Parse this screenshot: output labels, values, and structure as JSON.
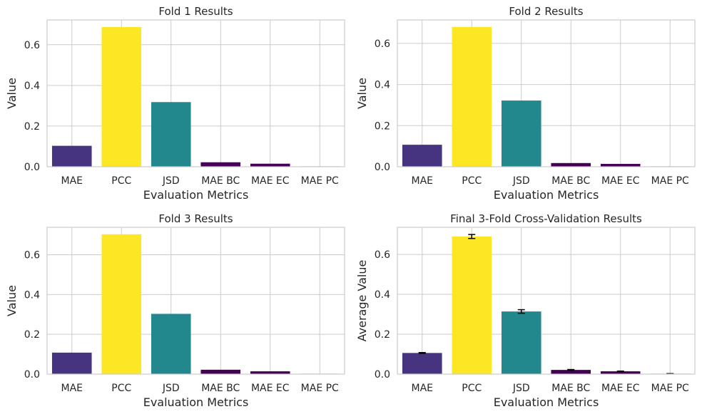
{
  "colors": {
    "MAE": "#463480",
    "PCC": "#fde724",
    "JSD": "#23888e",
    "MAE BC": "#440154",
    "MAE EC": "#440154",
    "MAE PC": "#440154",
    "grid": "#cccccc",
    "frame": "#cccccc"
  },
  "chart_data": [
    {
      "type": "bar",
      "title": "Fold 1 Results",
      "xlabel": "Evaluation Metrics",
      "ylabel": "Value",
      "categories": [
        "MAE",
        "PCC",
        "JSD",
        "MAE BC",
        "MAE EC",
        "MAE PC"
      ],
      "values": [
        0.103,
        0.687,
        0.318,
        0.022,
        0.015,
        0.002
      ],
      "ylim": [
        0,
        0.722
      ],
      "yticks": [
        "0.0",
        "0.2",
        "0.4",
        "0.6"
      ],
      "grid": true
    },
    {
      "type": "bar",
      "title": "Fold 2 Results",
      "xlabel": "Evaluation Metrics",
      "ylabel": "Value",
      "categories": [
        "MAE",
        "PCC",
        "JSD",
        "MAE BC",
        "MAE EC",
        "MAE PC"
      ],
      "values": [
        0.107,
        0.68,
        0.322,
        0.018,
        0.014,
        0.002
      ],
      "ylim": [
        0,
        0.714
      ],
      "yticks": [
        "0.0",
        "0.2",
        "0.4",
        "0.6"
      ],
      "grid": true
    },
    {
      "type": "bar",
      "title": "Fold 3 Results",
      "xlabel": "Evaluation Metrics",
      "ylabel": "Value",
      "categories": [
        "MAE",
        "PCC",
        "JSD",
        "MAE BC",
        "MAE EC",
        "MAE PC"
      ],
      "values": [
        0.108,
        0.703,
        0.303,
        0.022,
        0.014,
        0.002
      ],
      "ylim": [
        0,
        0.738
      ],
      "yticks": [
        "0.0",
        "0.2",
        "0.4",
        "0.6"
      ],
      "grid": true
    },
    {
      "type": "bar",
      "title": "Final 3-Fold Cross-Validation Results",
      "xlabel": "Evaluation Metrics",
      "ylabel": "Average Value",
      "categories": [
        "MAE",
        "PCC",
        "JSD",
        "MAE BC",
        "MAE EC",
        "MAE PC"
      ],
      "values": [
        0.106,
        0.69,
        0.314,
        0.021,
        0.014,
        0.002
      ],
      "errors": [
        0.002,
        0.01,
        0.009,
        0.002,
        0.001,
        0.0005
      ],
      "ylim": [
        0,
        0.736
      ],
      "yticks": [
        "0.0",
        "0.2",
        "0.4",
        "0.6"
      ],
      "grid": true
    }
  ]
}
